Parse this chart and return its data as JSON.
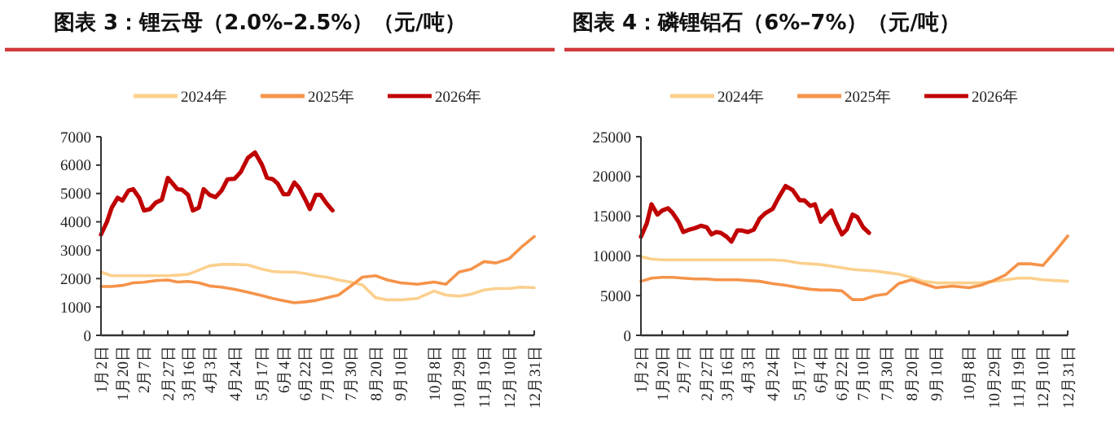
{
  "chart_data": [
    {
      "type": "line",
      "title": "图表 3：锂云母（2.0%–2.5%）（元/吨）",
      "legend": "top",
      "xlim": [
        "--01-02",
        "--12-31"
      ],
      "xticks": [
        {
          "value": "--01-02",
          "label": "1月2日"
        },
        {
          "value": "--01-20",
          "label": "1月20日"
        },
        {
          "value": "--02-07",
          "label": "2月7日"
        },
        {
          "value": "--02-27",
          "label": "2月27日"
        },
        {
          "value": "--03-16",
          "label": "3月16日"
        },
        {
          "value": "--04-03",
          "label": "4月3日"
        },
        {
          "value": "--04-24",
          "label": "4月24日"
        },
        {
          "value": "--05-17",
          "label": "5月17日"
        },
        {
          "value": "--06-04",
          "label": "6月4日"
        },
        {
          "value": "--06-22",
          "label": "6月22日"
        },
        {
          "value": "--07-10",
          "label": "7月10日"
        },
        {
          "value": "--07-30",
          "label": "7月30日"
        },
        {
          "value": "--08-20",
          "label": "8月20日"
        },
        {
          "value": "--09-10",
          "label": "9月10日"
        },
        {
          "value": "--10-08",
          "label": "10月8日"
        },
        {
          "value": "--10-29",
          "label": "10月29日"
        },
        {
          "value": "--11-19",
          "label": "11月19日"
        },
        {
          "value": "--12-10",
          "label": "12月10日"
        },
        {
          "value": "--12-31",
          "label": "12月31日"
        }
      ],
      "ylim": [
        0,
        7000
      ],
      "yticks": [
        0,
        1000,
        2000,
        3000,
        4000,
        5000,
        6000,
        7000
      ],
      "series": [
        {
          "name": "2024年",
          "color": "#fbd08d",
          "x": [
            "--01-02",
            "--01-11",
            "--01-20",
            "--01-29",
            "--02-07",
            "--02-17",
            "--02-27",
            "--03-07",
            "--03-16",
            "--03-25",
            "--04-03",
            "--04-13",
            "--04-24",
            "--05-05",
            "--05-17",
            "--05-26",
            "--06-04",
            "--06-13",
            "--06-22",
            "--07-01",
            "--07-10",
            "--07-20",
            "--07-30",
            "--08-09",
            "--08-20",
            "--08-30",
            "--09-10",
            "--09-24",
            "--10-08",
            "--10-18",
            "--10-29",
            "--11-08",
            "--11-19",
            "--11-29",
            "--12-10",
            "--12-20",
            "--12-31"
          ],
          "values": [
            2230,
            2100,
            2100,
            2100,
            2100,
            2100,
            2100,
            2120,
            2150,
            2300,
            2450,
            2500,
            2500,
            2480,
            2330,
            2250,
            2230,
            2230,
            2180,
            2100,
            2050,
            1950,
            1880,
            1780,
            1330,
            1250,
            1250,
            1300,
            1560,
            1420,
            1380,
            1450,
            1600,
            1650,
            1650,
            1700,
            1680
          ]
        },
        {
          "name": "2025年",
          "color": "#f5934a",
          "x": [
            "--01-02",
            "--01-11",
            "--01-20",
            "--01-29",
            "--02-07",
            "--02-17",
            "--02-27",
            "--03-07",
            "--03-16",
            "--03-25",
            "--04-03",
            "--04-13",
            "--04-24",
            "--05-05",
            "--05-17",
            "--05-26",
            "--06-04",
            "--06-13",
            "--06-22",
            "--07-01",
            "--07-10",
            "--07-20",
            "--07-30",
            "--08-09",
            "--08-20",
            "--08-30",
            "--09-10",
            "--09-24",
            "--10-08",
            "--10-18",
            "--10-29",
            "--11-08",
            "--11-19",
            "--11-29",
            "--12-10",
            "--12-20",
            "--12-31"
          ],
          "values": [
            1720,
            1720,
            1760,
            1850,
            1870,
            1930,
            1950,
            1880,
            1900,
            1850,
            1740,
            1700,
            1620,
            1520,
            1400,
            1300,
            1220,
            1150,
            1180,
            1230,
            1320,
            1420,
            1730,
            2050,
            2100,
            1950,
            1850,
            1800,
            1880,
            1800,
            2230,
            2330,
            2600,
            2550,
            2700,
            3100,
            3480
          ]
        },
        {
          "name": "2026年",
          "color": "#c00000",
          "x": [
            "--01-02",
            "--01-07",
            "--01-11",
            "--01-16",
            "--01-20",
            "--01-25",
            "--01-29",
            "--02-03",
            "--02-07",
            "--02-12",
            "--02-17",
            "--02-22",
            "--02-27",
            "--03-03",
            "--03-07",
            "--03-11",
            "--03-16",
            "--03-20",
            "--03-25",
            "--03-29",
            "--04-03",
            "--04-08",
            "--04-13",
            "--04-18",
            "--04-24",
            "--04-29",
            "--05-05",
            "--05-11",
            "--05-17",
            "--05-21",
            "--05-26",
            "--05-30",
            "--06-04",
            "--06-08",
            "--06-13",
            "--06-17",
            "--06-22",
            "--06-26",
            "--07-01",
            "--07-05",
            "--07-10",
            "--07-15"
          ],
          "values": [
            3550,
            4000,
            4500,
            4850,
            4750,
            5100,
            5150,
            4850,
            4400,
            4450,
            4680,
            4780,
            5550,
            5350,
            5150,
            5130,
            4950,
            4400,
            4500,
            5150,
            4950,
            4870,
            5100,
            5500,
            5520,
            5750,
            6250,
            6450,
            6000,
            5560,
            5500,
            5350,
            4970,
            4970,
            5390,
            5200,
            4800,
            4450,
            4950,
            4950,
            4650,
            4400
          ]
        }
      ]
    },
    {
      "type": "line",
      "title": "图表 4：磷锂铝石（6%–7%）（元/吨）",
      "legend": "top",
      "xlim": [
        "--01-02",
        "--12-31"
      ],
      "xticks": [
        {
          "value": "--01-02",
          "label": "1月2日"
        },
        {
          "value": "--01-20",
          "label": "1月20日"
        },
        {
          "value": "--02-07",
          "label": "2月7日"
        },
        {
          "value": "--02-27",
          "label": "2月27日"
        },
        {
          "value": "--03-16",
          "label": "3月16日"
        },
        {
          "value": "--04-03",
          "label": "4月3日"
        },
        {
          "value": "--04-24",
          "label": "4月24日"
        },
        {
          "value": "--05-17",
          "label": "5月17日"
        },
        {
          "value": "--06-04",
          "label": "6月4日"
        },
        {
          "value": "--06-22",
          "label": "6月22日"
        },
        {
          "value": "--07-10",
          "label": "7月10日"
        },
        {
          "value": "--07-30",
          "label": "7月30日"
        },
        {
          "value": "--08-20",
          "label": "8月20日"
        },
        {
          "value": "--09-10",
          "label": "9月10日"
        },
        {
          "value": "--10-08",
          "label": "10月8日"
        },
        {
          "value": "--10-29",
          "label": "10月29日"
        },
        {
          "value": "--11-19",
          "label": "11月19日"
        },
        {
          "value": "--12-10",
          "label": "12月10日"
        },
        {
          "value": "--12-31",
          "label": "12月31日"
        }
      ],
      "ylim": [
        0,
        25000
      ],
      "yticks": [
        0,
        5000,
        10000,
        15000,
        20000,
        25000
      ],
      "series": [
        {
          "name": "2024年",
          "color": "#fbd08d",
          "x": [
            "--01-02",
            "--01-11",
            "--01-20",
            "--01-29",
            "--02-07",
            "--02-17",
            "--02-27",
            "--03-07",
            "--03-16",
            "--03-25",
            "--04-03",
            "--04-13",
            "--04-24",
            "--05-05",
            "--05-17",
            "--05-26",
            "--06-04",
            "--06-13",
            "--06-22",
            "--07-01",
            "--07-10",
            "--07-20",
            "--07-30",
            "--08-09",
            "--08-20",
            "--08-30",
            "--09-10",
            "--09-24",
            "--10-08",
            "--10-18",
            "--10-29",
            "--11-08",
            "--11-19",
            "--11-29",
            "--12-10",
            "--12-20",
            "--12-31"
          ],
          "values": [
            9900,
            9600,
            9500,
            9500,
            9500,
            9500,
            9500,
            9500,
            9500,
            9500,
            9500,
            9500,
            9500,
            9400,
            9100,
            9000,
            8900,
            8700,
            8500,
            8300,
            8200,
            8100,
            7900,
            7700,
            7300,
            6800,
            6600,
            6600,
            6600,
            6600,
            6800,
            7000,
            7200,
            7200,
            7000,
            6900,
            6800
          ]
        },
        {
          "name": "2025年",
          "color": "#f5934a",
          "x": [
            "--01-02",
            "--01-11",
            "--01-20",
            "--01-29",
            "--02-07",
            "--02-17",
            "--02-27",
            "--03-07",
            "--03-16",
            "--03-25",
            "--04-03",
            "--04-13",
            "--04-24",
            "--05-05",
            "--05-17",
            "--05-26",
            "--06-04",
            "--06-13",
            "--06-22",
            "--07-01",
            "--07-10",
            "--07-20",
            "--07-30",
            "--08-09",
            "--08-20",
            "--08-30",
            "--09-10",
            "--09-24",
            "--10-08",
            "--10-18",
            "--10-29",
            "--11-08",
            "--11-19",
            "--11-29",
            "--12-10",
            "--12-20",
            "--12-31"
          ],
          "values": [
            6800,
            7200,
            7300,
            7300,
            7200,
            7100,
            7100,
            7000,
            7000,
            7000,
            6900,
            6800,
            6500,
            6300,
            6000,
            5800,
            5700,
            5700,
            5600,
            4500,
            4500,
            5000,
            5200,
            6500,
            7000,
            6500,
            6000,
            6200,
            6000,
            6300,
            6900,
            7600,
            9000,
            9000,
            8800,
            10500,
            12500
          ]
        },
        {
          "name": "2026年",
          "color": "#c00000",
          "x": [
            "--01-02",
            "--01-07",
            "--01-11",
            "--01-16",
            "--01-20",
            "--01-25",
            "--01-29",
            "--02-03",
            "--02-07",
            "--02-12",
            "--02-17",
            "--02-22",
            "--02-27",
            "--03-03",
            "--03-07",
            "--03-11",
            "--03-16",
            "--03-20",
            "--03-25",
            "--03-29",
            "--04-03",
            "--04-08",
            "--04-13",
            "--04-18",
            "--04-24",
            "--04-29",
            "--05-05",
            "--05-11",
            "--05-17",
            "--05-21",
            "--05-26",
            "--05-30",
            "--06-04",
            "--06-08",
            "--06-13",
            "--06-17",
            "--06-22",
            "--06-26",
            "--07-01",
            "--07-05",
            "--07-10",
            "--07-15"
          ],
          "values": [
            12400,
            14100,
            16500,
            15200,
            15700,
            16000,
            15400,
            14300,
            13000,
            13300,
            13500,
            13800,
            13600,
            12700,
            13000,
            12900,
            12400,
            11800,
            13200,
            13200,
            13000,
            13300,
            14700,
            15400,
            15900,
            17300,
            18800,
            18300,
            17000,
            17000,
            16300,
            16500,
            14300,
            15000,
            15700,
            14200,
            12700,
            13300,
            15200,
            14900,
            13600,
            12900
          ]
        }
      ]
    }
  ]
}
